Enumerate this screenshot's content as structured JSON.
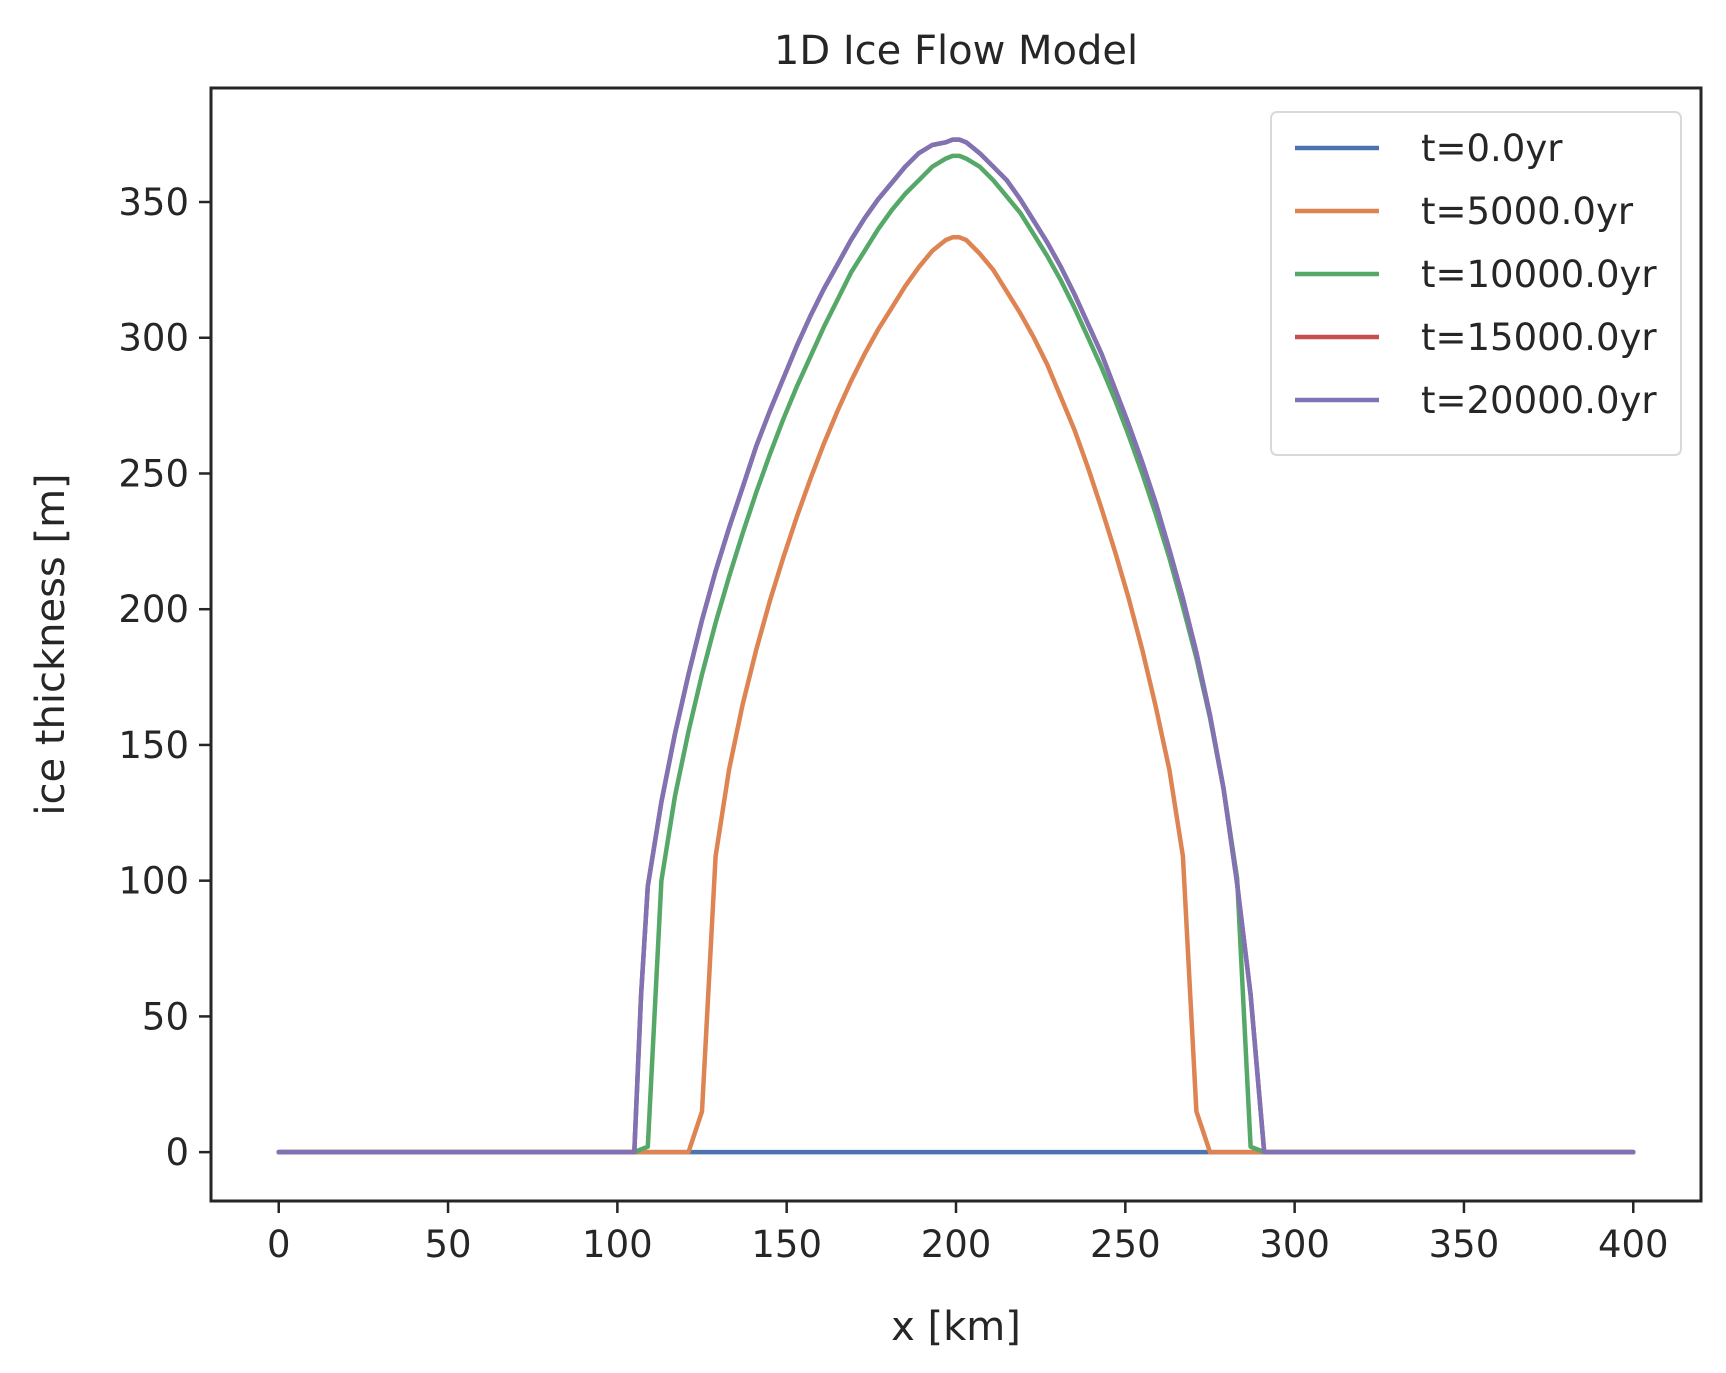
{
  "chart_data": {
    "type": "line",
    "title": "1D Ice Flow Model",
    "xlabel": "x [km]",
    "ylabel": "ice thickness [m]",
    "xlim": [
      -20,
      420
    ],
    "ylim": [
      -18,
      392
    ],
    "xticks": [
      0,
      50,
      100,
      150,
      200,
      250,
      300,
      350,
      400
    ],
    "yticks": [
      0,
      50,
      100,
      150,
      200,
      250,
      300,
      350
    ],
    "grid": false,
    "legend_position": "upper right",
    "series": [
      {
        "name": "t=0.0yr",
        "color": "#4c72b0",
        "x": [
          0,
          400
        ],
        "y": [
          0,
          0
        ]
      },
      {
        "name": "t=5000.0yr",
        "color": "#dd8452",
        "x": [
          0,
          121,
          125,
          129,
          133,
          137,
          141,
          145,
          149,
          153,
          157,
          161,
          165,
          169,
          173,
          177,
          181,
          185,
          189,
          193,
          197,
          199,
          201,
          203,
          207,
          211,
          215,
          219,
          223,
          227,
          231,
          235,
          239,
          243,
          247,
          251,
          255,
          259,
          263,
          267,
          271,
          275,
          279,
          400
        ],
        "y": [
          0,
          0,
          15,
          109,
          141,
          165,
          185,
          203,
          219,
          234,
          248,
          261,
          273,
          284,
          294,
          303,
          311,
          319,
          326,
          332,
          336,
          337,
          337,
          336,
          331,
          325,
          317,
          309,
          300,
          290,
          278,
          266,
          252,
          237,
          221,
          204,
          185,
          164,
          141,
          109,
          15,
          0,
          0,
          0
        ]
      },
      {
        "name": "t=10000.0yr",
        "color": "#55a868",
        "x": [
          0,
          105,
          109,
          113,
          117,
          121,
          125,
          129,
          133,
          137,
          141,
          145,
          149,
          153,
          157,
          161,
          165,
          169,
          173,
          177,
          181,
          185,
          189,
          193,
          197,
          199,
          201,
          203,
          207,
          211,
          215,
          219,
          223,
          227,
          231,
          235,
          239,
          243,
          247,
          251,
          255,
          259,
          263,
          267,
          271,
          275,
          279,
          283,
          287,
          291,
          295,
          400
        ],
        "y": [
          0,
          0,
          2,
          100,
          131,
          155,
          176,
          195,
          212,
          228,
          243,
          257,
          270,
          282,
          293,
          304,
          314,
          324,
          332,
          340,
          347,
          353,
          358,
          363,
          366,
          367,
          367,
          366,
          363,
          358,
          352,
          346,
          338,
          330,
          321,
          311,
          300,
          289,
          277,
          264,
          250,
          235,
          219,
          201,
          182,
          160,
          134,
          101,
          2,
          0,
          0,
          0
        ]
      },
      {
        "name": "t=15000.0yr",
        "color": "#c44e52",
        "x": [
          0,
          105,
          107,
          109,
          113,
          117,
          121,
          125,
          129,
          133,
          137,
          141,
          145,
          149,
          153,
          157,
          161,
          165,
          169,
          173,
          177,
          181,
          185,
          189,
          193,
          197,
          199,
          201,
          203,
          207,
          211,
          215,
          219,
          223,
          227,
          231,
          235,
          239,
          243,
          247,
          251,
          255,
          259,
          263,
          267,
          271,
          275,
          279,
          283,
          287,
          291,
          293,
          295,
          400
        ],
        "y": [
          0,
          0,
          58,
          98,
          129,
          154,
          176,
          196,
          214,
          230,
          245,
          260,
          273,
          285,
          297,
          308,
          318,
          327,
          336,
          344,
          351,
          357,
          363,
          368,
          371,
          372,
          373,
          373,
          372,
          368,
          363,
          358,
          351,
          343,
          335,
          326,
          316,
          305,
          294,
          281,
          268,
          254,
          239,
          222,
          204,
          184,
          161,
          134,
          99,
          58,
          0,
          0,
          0,
          0
        ]
      },
      {
        "name": "t=20000.0yr",
        "color": "#8172b3",
        "x": [
          0,
          105,
          107,
          109,
          113,
          117,
          121,
          125,
          129,
          133,
          137,
          141,
          145,
          149,
          153,
          157,
          161,
          165,
          169,
          173,
          177,
          181,
          185,
          189,
          193,
          197,
          199,
          201,
          203,
          207,
          211,
          215,
          219,
          223,
          227,
          231,
          235,
          239,
          243,
          247,
          251,
          255,
          259,
          263,
          267,
          271,
          275,
          279,
          283,
          287,
          291,
          293,
          295,
          400
        ],
        "y": [
          0,
          0,
          58,
          98,
          129,
          154,
          176,
          196,
          214,
          230,
          245,
          260,
          273,
          285,
          297,
          308,
          318,
          327,
          336,
          344,
          351,
          357,
          363,
          368,
          371,
          372,
          373,
          373,
          372,
          368,
          363,
          358,
          351,
          343,
          335,
          326,
          316,
          305,
          294,
          281,
          268,
          254,
          239,
          222,
          204,
          184,
          161,
          134,
          99,
          58,
          0,
          0,
          0,
          0
        ]
      }
    ]
  }
}
